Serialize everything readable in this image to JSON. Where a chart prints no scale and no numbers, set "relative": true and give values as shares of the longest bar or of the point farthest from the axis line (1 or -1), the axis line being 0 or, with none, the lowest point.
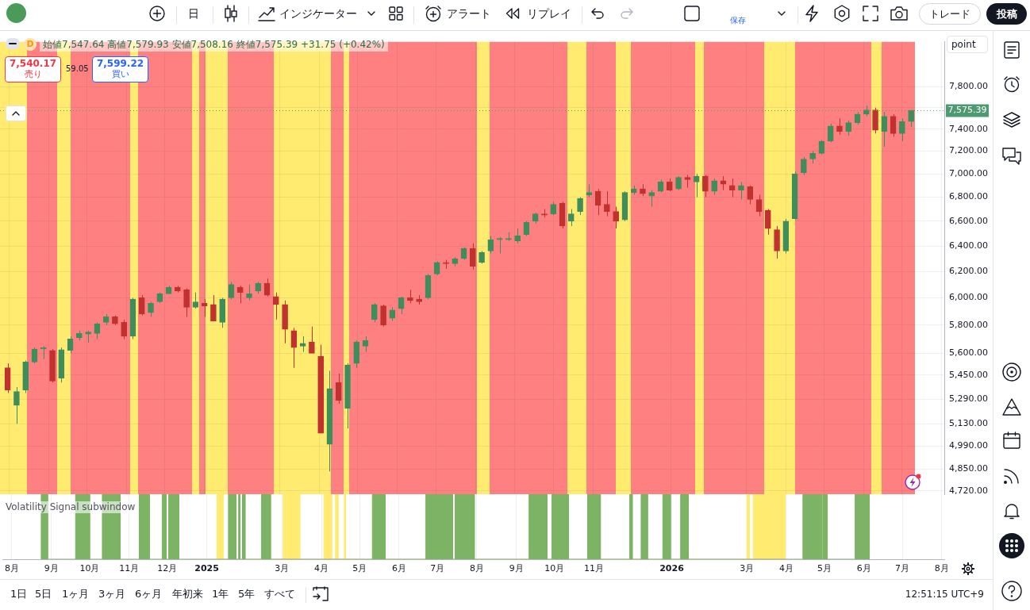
{
  "chart_data": [
    {
      "type": "candlestick",
      "ylabel": "point",
      "x": [
        "2024-07-31",
        "2024-08-07",
        "2024-08-14",
        "2024-08-21",
        "2024-08-28",
        "2024-09-04",
        "2024-09-11",
        "2024-09-18",
        "2024-09-25",
        "2024-10-02",
        "2024-10-09",
        "2024-10-16",
        "2024-10-23",
        "2024-10-30",
        "2024-11-06",
        "2024-11-13",
        "2024-11-20",
        "2024-11-27",
        "2024-12-04",
        "2024-12-11",
        "2024-12-18",
        "2024-12-25",
        "2025-01-01",
        "2025-01-08",
        "2025-01-15",
        "2025-01-22",
        "2025-01-29",
        "2025-02-05",
        "2025-02-12",
        "2025-02-19",
        "2025-02-26",
        "2025-03-05",
        "2025-03-12",
        "2025-03-19",
        "2025-03-26",
        "2025-04-02",
        "2025-04-09",
        "2025-04-16",
        "2025-04-23",
        "2025-04-30",
        "2025-05-07",
        "2025-05-14",
        "2025-05-21",
        "2025-05-28",
        "2025-06-04",
        "2025-06-11",
        "2025-06-18",
        "2025-06-25",
        "2025-07-02",
        "2025-07-09",
        "2025-07-16",
        "2025-07-23",
        "2025-07-30",
        "2025-08-06",
        "2025-08-13",
        "2025-08-20",
        "2025-08-27",
        "2025-09-03",
        "2025-09-10",
        "2025-09-17",
        "2025-09-24",
        "2025-10-01",
        "2025-10-08",
        "2025-10-15",
        "2025-10-22",
        "2025-10-29",
        "2025-11-05",
        "2025-11-12",
        "2025-11-19",
        "2025-11-26",
        "2025-12-03",
        "2025-12-10",
        "2025-12-17",
        "2025-12-24",
        "2025-12-31",
        "2026-01-07",
        "2026-01-14",
        "2026-01-21",
        "2026-01-28",
        "2026-02-04",
        "2026-02-11",
        "2026-02-18",
        "2026-02-25",
        "2026-03-04",
        "2026-03-11",
        "2026-03-18",
        "2026-03-25",
        "2026-04-01",
        "2026-04-08",
        "2026-04-15",
        "2026-04-22",
        "2026-04-29",
        "2026-05-06",
        "2026-05-13",
        "2026-05-20",
        "2026-05-27",
        "2026-06-03",
        "2026-06-10",
        "2026-06-17",
        "2026-06-24",
        "2026-07-01",
        "2026-07-08"
      ],
      "ohlc": [
        [
          5500,
          5530,
          5330,
          5350
        ],
        [
          5250,
          5370,
          5130,
          5340
        ],
        [
          5350,
          5550,
          5330,
          5540
        ],
        [
          5540,
          5640,
          5530,
          5630
        ],
        [
          5630,
          5650,
          5560,
          5640
        ],
        [
          5620,
          5630,
          5400,
          5410
        ],
        [
          5430,
          5640,
          5400,
          5625
        ],
        [
          5620,
          5720,
          5600,
          5700
        ],
        [
          5710,
          5760,
          5690,
          5740
        ],
        [
          5735,
          5760,
          5675,
          5750
        ],
        [
          5740,
          5820,
          5700,
          5810
        ],
        [
          5820,
          5880,
          5800,
          5860
        ],
        [
          5860,
          5870,
          5800,
          5810
        ],
        [
          5820,
          5840,
          5700,
          5720
        ],
        [
          5720,
          6000,
          5700,
          5990
        ],
        [
          6000,
          6020,
          5870,
          5880
        ],
        [
          5890,
          5970,
          5860,
          5960
        ],
        [
          5970,
          6040,
          5960,
          6030
        ],
        [
          6030,
          6090,
          6030,
          6080
        ],
        [
          6080,
          6090,
          6040,
          6050
        ],
        [
          6060,
          6070,
          5860,
          5930
        ],
        [
          5930,
          6040,
          5920,
          5970
        ],
        [
          5960,
          5990,
          5860,
          5940
        ],
        [
          5950,
          6020,
          5830,
          5830
        ],
        [
          5820,
          6000,
          5780,
          5990
        ],
        [
          6000,
          6120,
          5990,
          6100
        ],
        [
          6080,
          6090,
          5960,
          6040
        ],
        [
          6000,
          6100,
          5980,
          6030
        ],
        [
          6050,
          6120,
          6030,
          6110
        ],
        [
          6110,
          6145,
          6010,
          6020
        ],
        [
          6010,
          6040,
          5840,
          5950
        ],
        [
          5950,
          5980,
          5670,
          5770
        ],
        [
          5760,
          5780,
          5500,
          5640
        ],
        [
          5650,
          5720,
          5610,
          5670
        ],
        [
          5680,
          5790,
          5600,
          5600
        ],
        [
          5580,
          5660,
          5070,
          5070
        ],
        [
          5000,
          5480,
          4835,
          5360
        ],
        [
          5400,
          5460,
          5260,
          5280
        ],
        [
          5230,
          5530,
          5100,
          5520
        ],
        [
          5530,
          5690,
          5500,
          5680
        ],
        [
          5650,
          5720,
          5610,
          5690
        ],
        [
          5840,
          5960,
          5820,
          5950
        ],
        [
          5940,
          5950,
          5790,
          5800
        ],
        [
          5850,
          5930,
          5830,
          5910
        ],
        [
          5920,
          6010,
          5880,
          6000
        ],
        [
          6000,
          6060,
          5960,
          5980
        ],
        [
          5990,
          6020,
          5950,
          5970
        ],
        [
          6000,
          6180,
          5990,
          6170
        ],
        [
          6180,
          6280,
          6170,
          6270
        ],
        [
          6270,
          6290,
          6220,
          6260
        ],
        [
          6260,
          6310,
          6240,
          6300
        ],
        [
          6300,
          6390,
          6290,
          6380
        ],
        [
          6380,
          6420,
          6215,
          6240
        ],
        [
          6270,
          6360,
          6260,
          6350
        ],
        [
          6360,
          6480,
          6340,
          6450
        ],
        [
          6450,
          6470,
          6340,
          6460
        ],
        [
          6450,
          6510,
          6440,
          6460
        ],
        [
          6440,
          6540,
          6420,
          6480
        ],
        [
          6490,
          6600,
          6480,
          6590
        ],
        [
          6600,
          6670,
          6580,
          6660
        ],
        [
          6660,
          6700,
          6630,
          6650
        ],
        [
          6660,
          6760,
          6650,
          6740
        ],
        [
          6750,
          6760,
          6540,
          6560
        ],
        [
          6600,
          6700,
          6560,
          6660
        ],
        [
          6680,
          6800,
          6650,
          6790
        ],
        [
          6820,
          6910,
          6800,
          6840
        ],
        [
          6850,
          6870,
          6650,
          6730
        ],
        [
          6740,
          6850,
          6640,
          6680
        ],
        [
          6680,
          6720,
          6540,
          6600
        ],
        [
          6610,
          6850,
          6600,
          6840
        ],
        [
          6840,
          6900,
          6820,
          6870
        ],
        [
          6870,
          6910,
          6810,
          6830
        ],
        [
          6810,
          6860,
          6720,
          6840
        ],
        [
          6850,
          6950,
          6840,
          6930
        ],
        [
          6930,
          6960,
          6850,
          6860
        ],
        [
          6870,
          6980,
          6860,
          6970
        ],
        [
          6970,
          6990,
          6880,
          6950
        ],
        [
          6930,
          7000,
          6800,
          6980
        ],
        [
          6980,
          6990,
          6800,
          6850
        ],
        [
          6850,
          6960,
          6820,
          6940
        ],
        [
          6940,
          6980,
          6860,
          6910
        ],
        [
          6900,
          6960,
          6800,
          6860
        ],
        [
          6860,
          6930,
          6780,
          6900
        ],
        [
          6890,
          6900,
          6740,
          6780
        ],
        [
          6780,
          6820,
          6640,
          6680
        ],
        [
          6690,
          6700,
          6490,
          6540
        ],
        [
          6530,
          6560,
          6300,
          6360
        ],
        [
          6360,
          6620,
          6340,
          6600
        ],
        [
          6620,
          7020,
          6610,
          7000
        ],
        [
          7010,
          7150,
          6990,
          7130
        ],
        [
          7130,
          7200,
          7090,
          7180
        ],
        [
          7180,
          7300,
          7170,
          7290
        ],
        [
          7290,
          7450,
          7280,
          7430
        ],
        [
          7430,
          7500,
          7350,
          7380
        ],
        [
          7380,
          7480,
          7340,
          7460
        ],
        [
          7460,
          7560,
          7440,
          7540
        ],
        [
          7540,
          7620,
          7520,
          7580
        ],
        [
          7580,
          7600,
          7360,
          7390
        ],
        [
          7380,
          7560,
          7240,
          7520
        ],
        [
          7520,
          7540,
          7330,
          7360
        ],
        [
          7360,
          7500,
          7290,
          7470
        ],
        [
          7470,
          7580,
          7420,
          7575.39
        ]
      ],
      "colors": [
        "#c0312f",
        "#3e8e5c",
        "#3e8e5c",
        "#3e8e5c",
        "#3e8e5c",
        "#c0312f",
        "#3e8e5c",
        "#3e8e5c",
        "#3e8e5c",
        "#3e8e5c",
        "#3e8e5c",
        "#3e8e5c",
        "#c0312f",
        "#c0312f",
        "#3e8e5c",
        "#c0312f",
        "#3e8e5c",
        "#3e8e5c",
        "#3e8e5c",
        "#c0312f",
        "#c0312f",
        "#3e8e5c",
        "#c0312f",
        "#c0312f",
        "#3e8e5c",
        "#3e8e5c",
        "#c0312f",
        "#3e8e5c",
        "#3e8e5c",
        "#c0312f",
        "#c0312f",
        "#c0312f",
        "#c0312f",
        "#3e8e5c",
        "#c0312f",
        "#c0312f",
        "#3e8e5c",
        "#c0312f",
        "#3e8e5c",
        "#3e8e5c",
        "#3e8e5c",
        "#3e8e5c",
        "#c0312f",
        "#3e8e5c",
        "#3e8e5c",
        "#c0312f",
        "#c0312f",
        "#3e8e5c",
        "#3e8e5c",
        "#c0312f",
        "#3e8e5c",
        "#3e8e5c",
        "#c0312f",
        "#3e8e5c",
        "#3e8e5c",
        "#3e8e5c",
        "#3e8e5c",
        "#3e8e5c",
        "#3e8e5c",
        "#3e8e5c",
        "#c0312f",
        "#3e8e5c",
        "#c0312f",
        "#3e8e5c",
        "#3e8e5c",
        "#3e8e5c",
        "#c0312f",
        "#c0312f",
        "#c0312f",
        "#3e8e5c",
        "#3e8e5c",
        "#c0312f",
        "#3e8e5c",
        "#3e8e5c",
        "#c0312f",
        "#3e8e5c",
        "#c0312f",
        "#3e8e5c",
        "#c0312f",
        "#3e8e5c",
        "#c0312f",
        "#c0312f",
        "#3e8e5c",
        "#c0312f",
        "#c0312f",
        "#c0312f",
        "#c0312f",
        "#3e8e5c",
        "#3e8e5c",
        "#3e8e5c",
        "#3e8e5c",
        "#3e8e5c",
        "#3e8e5c",
        "#c0312f",
        "#3e8e5c",
        "#3e8e5c",
        "#3e8e5c",
        "#c0312f",
        "#3e8e5c",
        "#c0312f",
        "#3e8e5c",
        "#3e8e5c"
      ],
      "xlim": [
        "2024-07-25",
        "2026-08-03"
      ],
      "xticks": [
        {
          "value": "2024-08-01",
          "label": null
        },
        {
          "value": "2024-09-01",
          "label": null
        },
        {
          "value": "2024-10-01",
          "label": null
        },
        {
          "value": "2024-11-01",
          "label": null
        },
        {
          "value": "2024-12-01",
          "label": null
        },
        {
          "value": "2025-01-01",
          "label": null
        },
        {
          "value": "2025-03-01",
          "label": null
        },
        {
          "value": "2025-04-01",
          "label": null
        },
        {
          "value": "2025-05-01",
          "label": null
        },
        {
          "value": "2025-06-01",
          "label": null
        },
        {
          "value": "2025-07-01",
          "label": null
        },
        {
          "value": "2025-08-01",
          "label": null
        },
        {
          "value": "2025-09-01",
          "label": null
        },
        {
          "value": "2025-10-01",
          "label": null
        },
        {
          "value": "2025-11-01",
          "label": null
        },
        {
          "value": "2026-01-01",
          "label": null
        },
        {
          "value": "2026-03-01",
          "label": null
        },
        {
          "value": "2026-04-01",
          "label": null
        },
        {
          "value": "2026-05-01",
          "label": null
        },
        {
          "value": "2026-06-01",
          "label": null
        },
        {
          "value": "2026-07-01",
          "label": null
        },
        {
          "value": "2026-08-01",
          "label": null
        }
      ],
      "ylim": [
        4700,
        8250
      ],
      "yticks": [
        {
          "value": 4720,
          "label": "4,720.00"
        },
        {
          "value": 4850,
          "label": "4,850.00"
        },
        {
          "value": 4990,
          "label": "4,990.00"
        },
        {
          "value": 5130,
          "label": "5,130.00"
        },
        {
          "value": 5290,
          "label": "5,290.00"
        },
        {
          "value": 5450,
          "label": "5,450.00"
        },
        {
          "value": 5600,
          "label": "5,600.00"
        },
        {
          "value": 5800,
          "label": "5,800.00"
        },
        {
          "value": 6000,
          "label": "6,000.00"
        },
        {
          "value": 6200,
          "label": "6,200.00"
        },
        {
          "value": 6400,
          "label": "6,400.00"
        },
        {
          "value": 6600,
          "label": "6,600.00"
        },
        {
          "value": 6800,
          "label": "6,800.00"
        },
        {
          "value": 7000,
          "label": "7,000.00"
        },
        {
          "value": 7200,
          "label": "7,200.00"
        },
        {
          "value": 7400,
          "label": "7,400.00"
        },
        {
          "value": 7600,
          "label": null
        },
        {
          "value": 7800,
          "label": "7,800.00"
        }
      ],
      "log": true,
      "grid": true,
      "tick_labels": "y",
      "bands": [
        {
          "axis": "x",
          "from": "2024-07-25",
          "to": "2024-08-15",
          "color": "#ffeb70"
        },
        {
          "axis": "x",
          "from": "2024-08-15",
          "to": "2024-09-08",
          "color": "#ff8080"
        },
        {
          "axis": "x",
          "from": "2024-09-08",
          "to": "2024-09-18",
          "color": "#ffeb70"
        },
        {
          "axis": "x",
          "from": "2024-09-18",
          "to": "2024-11-04",
          "color": "#ff8080"
        },
        {
          "axis": "x",
          "from": "2024-11-04",
          "to": "2024-11-10",
          "color": "#ffeb70"
        },
        {
          "axis": "x",
          "from": "2024-11-10",
          "to": "2024-12-22",
          "color": "#ff8080"
        },
        {
          "axis": "x",
          "from": "2024-12-22",
          "to": "2024-12-28",
          "color": "#ffeb70"
        },
        {
          "axis": "x",
          "from": "2024-12-28",
          "to": "2025-01-02",
          "color": "#ff8080"
        },
        {
          "axis": "x",
          "from": "2025-01-02",
          "to": "2025-01-19",
          "color": "#ffeb70"
        },
        {
          "axis": "x",
          "from": "2025-01-19",
          "to": "2025-02-24",
          "color": "#ff8080"
        },
        {
          "axis": "x",
          "from": "2025-02-24",
          "to": "2025-04-10",
          "color": "#ffeb70"
        },
        {
          "axis": "x",
          "from": "2025-04-10",
          "to": "2025-04-20",
          "color": "#ff8080"
        },
        {
          "axis": "x",
          "from": "2025-04-20",
          "to": "2025-04-24",
          "color": "#ffeb70"
        },
        {
          "axis": "x",
          "from": "2025-04-24",
          "to": "2025-08-02",
          "color": "#ff8080"
        },
        {
          "axis": "x",
          "from": "2025-08-02",
          "to": "2025-08-12",
          "color": "#ffeb70"
        },
        {
          "axis": "x",
          "from": "2025-08-12",
          "to": "2025-10-12",
          "color": "#ff8080"
        },
        {
          "axis": "x",
          "from": "2025-10-12",
          "to": "2025-10-27",
          "color": "#ffeb70"
        },
        {
          "axis": "x",
          "from": "2025-10-27",
          "to": "2025-11-19",
          "color": "#ff8080"
        },
        {
          "axis": "x",
          "from": "2025-11-19",
          "to": "2025-12-01",
          "color": "#ffeb70"
        },
        {
          "axis": "x",
          "from": "2025-12-01",
          "to": "2026-01-20",
          "color": "#ff8080"
        },
        {
          "axis": "x",
          "from": "2026-01-20",
          "to": "2026-01-27",
          "color": "#ffeb70"
        },
        {
          "axis": "x",
          "from": "2026-01-27",
          "to": "2026-03-15",
          "color": "#ff8080"
        },
        {
          "axis": "x",
          "from": "2026-03-15",
          "to": "2026-04-08",
          "color": "#ffeb70"
        },
        {
          "axis": "x",
          "from": "2026-04-08",
          "to": "2026-06-07",
          "color": "#ff8080"
        },
        {
          "axis": "x",
          "from": "2026-06-07",
          "to": "2026-06-15",
          "color": "#ffeb70"
        },
        {
          "axis": "x",
          "from": "2026-06-15",
          "to": "2026-07-11",
          "color": "#ff8080"
        }
      ],
      "ref_lines": [
        {
          "axis": "y",
          "value": 7575.39,
          "label": "7,575.39",
          "color": "#4e9a70",
          "line_style": "dotted"
        }
      ],
      "annotations": [
        "D",
        "始値7,547.64 高値7,579.93 安値7,508.16 終値7,575.39 +31.75 (+0.42%)",
        "7,540.17",
        "売り",
        "59.05",
        "7,599.22",
        "買い",
        "日",
        "インジケーター",
        "アラート",
        "リプレイ",
        "保存",
        "トレード",
        "投稿",
        "1日",
        "5日",
        "1ヶ月",
        "3ヶ月",
        "6ヶ月",
        "年初来",
        "1年",
        "5年",
        "すべて",
        "12:51:15 UTC+9"
      ]
    },
    {
      "type": "area",
      "relative": true,
      "title": "Volatility Signal subwindow",
      "xlim": [
        "2024-07-25",
        "2026-08-03"
      ],
      "xticks": [
        {
          "value": "2024-08-01",
          "label": "8月"
        },
        {
          "value": "2024-09-01",
          "label": "9月"
        },
        {
          "value": "2024-10-01",
          "label": "10月"
        },
        {
          "value": "2024-11-01",
          "label": "11月"
        },
        {
          "value": "2024-12-01",
          "label": "12月"
        },
        {
          "value": "2025-01-01",
          "label": "2025"
        },
        {
          "value": "2025-03-01",
          "label": "3月"
        },
        {
          "value": "2025-04-01",
          "label": "4月"
        },
        {
          "value": "2025-05-01",
          "label": "5月"
        },
        {
          "value": "2025-06-01",
          "label": "6月"
        },
        {
          "value": "2025-07-01",
          "label": "7月"
        },
        {
          "value": "2025-08-01",
          "label": "8月"
        },
        {
          "value": "2025-09-01",
          "label": "9月"
        },
        {
          "value": "2025-10-01",
          "label": "10月"
        },
        {
          "value": "2025-11-01",
          "label": "11月"
        },
        {
          "value": "2026-01-01",
          "label": "2026"
        },
        {
          "value": "2026-03-01",
          "label": "3月"
        },
        {
          "value": "2026-04-01",
          "label": "4月"
        },
        {
          "value": "2026-05-01",
          "label": "5月"
        },
        {
          "value": "2026-06-01",
          "label": "6月"
        },
        {
          "value": "2026-07-01",
          "label": "7月"
        },
        {
          "value": "2026-08-01",
          "label": "8月"
        }
      ],
      "grid": "x",
      "tick_labels": "x",
      "series": [
        {
          "color": "#7cb364",
          "x": [
            "2024-08-24",
            "2024-08-24",
            "2024-08-29",
            "2024-08-29",
            "2024-09-20",
            "2024-09-20",
            "2024-10-01",
            "2024-10-01",
            "2024-10-11",
            "2024-10-11",
            "2024-10-25",
            "2024-10-25",
            "2024-11-09",
            "2024-11-09",
            "2024-11-17",
            "2024-11-17",
            "2024-11-27",
            "2024-11-27",
            "2024-11-30",
            "2024-11-30",
            "2024-12-02",
            "2024-12-02",
            "2024-12-10",
            "2024-12-10",
            "2025-01-18",
            "2025-01-18",
            "2025-01-24",
            "2025-01-24",
            "2025-01-26",
            "2025-01-26",
            "2025-01-27",
            "2025-01-27",
            "2025-01-29",
            "2025-01-29",
            "2025-01-31",
            "2025-01-31",
            "2025-02-13",
            "2025-02-13",
            "2025-02-20",
            "2025-02-20",
            "2025-05-11",
            "2025-05-11",
            "2025-05-21",
            "2025-05-21",
            "2025-06-22",
            "2025-06-22",
            "2025-07-13",
            "2025-07-13",
            "2025-07-15",
            "2025-07-15",
            "2025-07-30",
            "2025-07-30",
            "2025-09-11",
            "2025-09-11",
            "2025-09-25",
            "2025-09-25",
            "2025-09-29",
            "2025-09-29",
            "2025-10-12",
            "2025-10-12",
            "2025-10-27",
            "2025-10-27",
            "2025-11-06",
            "2025-11-06",
            "2025-11-29",
            "2025-11-29",
            "2025-12-01",
            "2025-12-01",
            "2025-12-08",
            "2025-12-08",
            "2025-12-13",
            "2025-12-13",
            "2025-12-25",
            "2025-12-25",
            "2025-12-31",
            "2025-12-31",
            "2026-01-08",
            "2026-01-08",
            "2026-01-14",
            "2026-01-14",
            "2026-04-14",
            "2026-04-14",
            "2026-04-29",
            "2026-04-29",
            "2026-04-30",
            "2026-04-30",
            "2026-05-03",
            "2026-05-03",
            "2026-05-25",
            "2026-05-25",
            "2026-06-05",
            "2026-06-05"
          ],
          "values": [
            0,
            1,
            1,
            0,
            0,
            1,
            1,
            0,
            0,
            1,
            1,
            0,
            0,
            1,
            1,
            0,
            0,
            1,
            1,
            0,
            0,
            1,
            1,
            0,
            0,
            1,
            1,
            0,
            0,
            1,
            1,
            0,
            0,
            1,
            1,
            0,
            0,
            1,
            1,
            0,
            0,
            1,
            1,
            0,
            0,
            1,
            1,
            0,
            0,
            1,
            1,
            0,
            0,
            1,
            1,
            0,
            0,
            1,
            1,
            0,
            0,
            1,
            1,
            0,
            0,
            1,
            1,
            0,
            0,
            1,
            1,
            0,
            0,
            1,
            1,
            0,
            0,
            1,
            1,
            0,
            0,
            1,
            1,
            0,
            0,
            1,
            1,
            0,
            0,
            1,
            1,
            0
          ]
        },
        {
          "color": "#ffeb70",
          "x": [
            "2025-01-09",
            "2025-01-09",
            "2025-01-14",
            "2025-01-14",
            "2025-03-02",
            "2025-03-02",
            "2025-03-15",
            "2025-03-15",
            "2025-04-03",
            "2025-04-03",
            "2025-04-09",
            "2025-04-09",
            "2025-04-12",
            "2025-04-12",
            "2025-04-14",
            "2025-04-14",
            "2025-04-19",
            "2025-04-19",
            "2025-04-20",
            "2025-04-20",
            "2026-03-01",
            "2026-03-01",
            "2026-03-03",
            "2026-03-03",
            "2026-03-06",
            "2026-03-06",
            "2026-03-31",
            "2026-03-31"
          ],
          "values": [
            0,
            1,
            1,
            0,
            0,
            1,
            1,
            0,
            0,
            1,
            1,
            0,
            0,
            1,
            1,
            0,
            0,
            1,
            1,
            0,
            0,
            1,
            1,
            0,
            0,
            1,
            1,
            0
          ]
        }
      ]
    }
  ]
}
